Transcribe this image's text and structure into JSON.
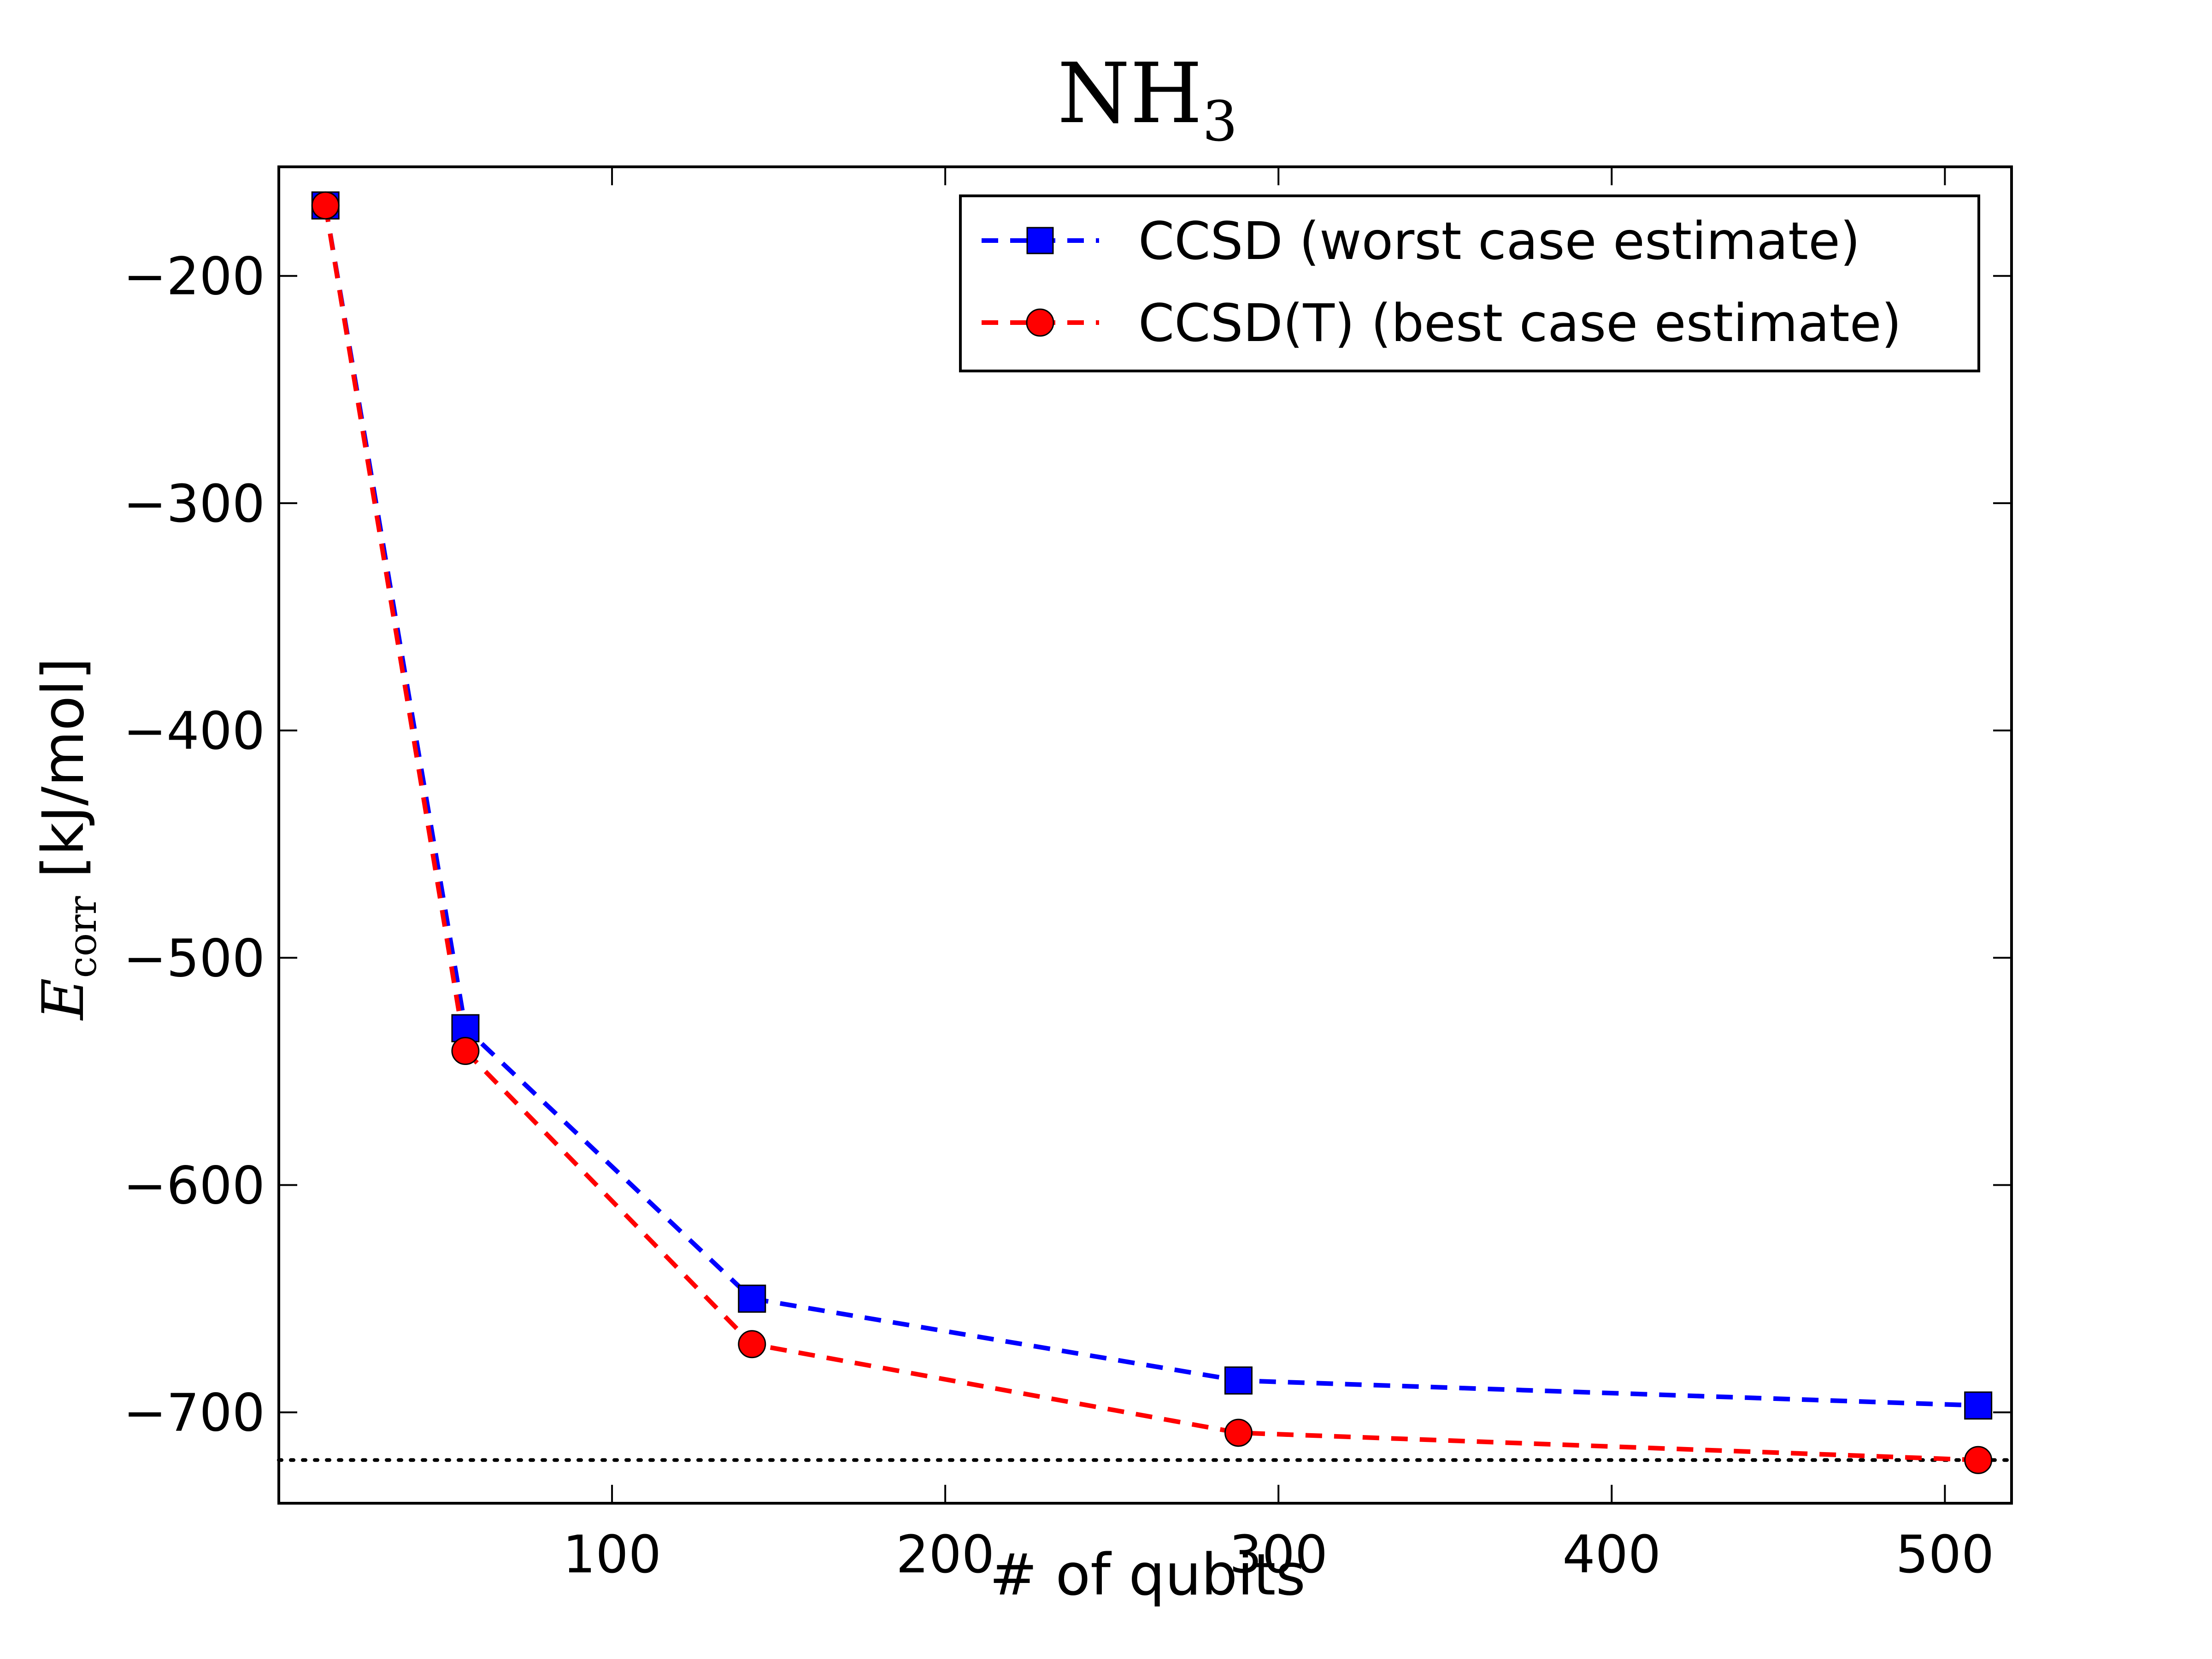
{
  "chart_data": {
    "type": "line",
    "title": "NH",
    "title_subscript": "3",
    "xlabel": "# of qubits",
    "ylabel_symbol": "E",
    "ylabel_subscript": "corr",
    "ylabel_unit": " [kJ/mol]",
    "xlim": [
      0,
      520
    ],
    "ylim": [
      -740,
      -152
    ],
    "xticks": [
      100,
      200,
      300,
      400,
      500
    ],
    "yticks": [
      -200,
      -300,
      -400,
      -500,
      -600,
      -700
    ],
    "xtick_labels": [
      "100",
      "200",
      "300",
      "400",
      "500"
    ],
    "ytick_labels": [
      "−200",
      "−300",
      "−400",
      "−500",
      "−600",
      "−700"
    ],
    "grid": false,
    "legend_position": "top-right",
    "reference_line": {
      "y": -721,
      "style": "dotted",
      "color": "#000000"
    },
    "series": [
      {
        "name": "CCSD (worst case estimate)",
        "color": "#0000ff",
        "marker": "square",
        "x": [
          14,
          56,
          142,
          288,
          510
        ],
        "y": [
          -169,
          -531,
          -650,
          -686,
          -697
        ]
      },
      {
        "name": "CCSD(T) (best case estimate)",
        "color": "#ff0000",
        "marker": "circle",
        "x": [
          14,
          56,
          142,
          288,
          510
        ],
        "y": [
          -169,
          -541,
          -670,
          -709,
          -721
        ]
      }
    ]
  }
}
